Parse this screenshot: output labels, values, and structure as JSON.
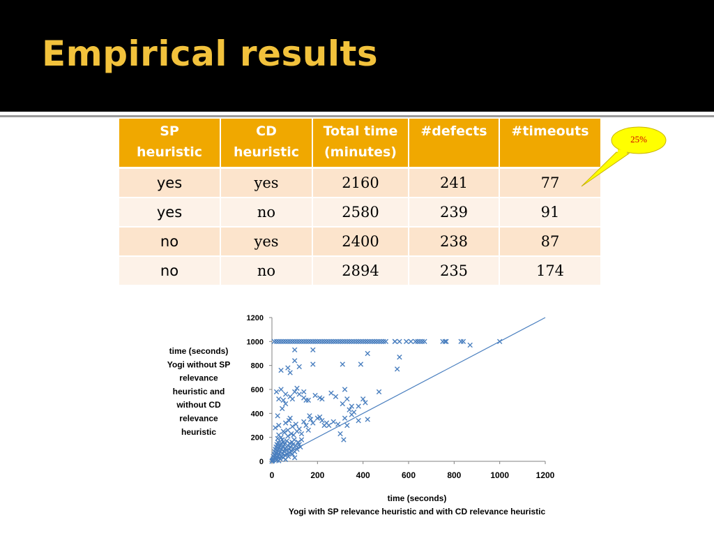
{
  "slide": {
    "title": "Empirical results"
  },
  "table": {
    "headers": [
      [
        "SP",
        "heuristic"
      ],
      [
        "CD",
        "heuristic"
      ],
      [
        "Total time",
        "(minutes)"
      ],
      [
        "#defects"
      ],
      [
        "#timeouts"
      ]
    ],
    "rows": [
      [
        "yes",
        "yes",
        "2160",
        "241",
        "77"
      ],
      [
        "yes",
        "no",
        "2580",
        "239",
        "91"
      ],
      [
        "no",
        "yes",
        "2400",
        "238",
        "87"
      ],
      [
        "no",
        "no",
        "2894",
        "235",
        "174"
      ]
    ]
  },
  "callout": {
    "text": "25%",
    "fill": "#ffff00",
    "stroke": "#c9b400",
    "text_color": "#d00000"
  },
  "colors": {
    "header_bg": "#f0a800",
    "row_odd": "#fce4cc",
    "row_even": "#fdf2e8",
    "title": "#f2c23c",
    "series": "#4a7fbf"
  },
  "chart_data": {
    "type": "scatter",
    "xlabel": [
      "time (seconds)",
      "Yogi with SP relevance heuristic and with CD relevance heuristic"
    ],
    "ylabel": [
      "time (seconds)",
      "Yogi  without SP",
      "relevance",
      "heuristic and",
      "without CD",
      "relevance",
      "heuristic"
    ],
    "x_ticks": [
      "0",
      "200",
      "400",
      "600",
      "800",
      "1000",
      "1200"
    ],
    "y_ticks": [
      "0",
      "200",
      "400",
      "600",
      "800",
      "1000",
      "1200"
    ],
    "xlim": [
      0,
      1200
    ],
    "ylim": [
      0,
      1200
    ],
    "marker": "x",
    "grid": false,
    "reference_line": {
      "x": [
        0,
        1200
      ],
      "y": [
        0,
        1200
      ]
    },
    "points": [
      [
        0,
        0
      ],
      [
        2,
        5
      ],
      [
        4,
        10
      ],
      [
        5,
        20
      ],
      [
        6,
        40
      ],
      [
        8,
        15
      ],
      [
        10,
        60
      ],
      [
        10,
        30
      ],
      [
        12,
        80
      ],
      [
        14,
        25
      ],
      [
        15,
        100
      ],
      [
        16,
        50
      ],
      [
        18,
        120
      ],
      [
        20,
        10
      ],
      [
        20,
        70
      ],
      [
        22,
        140
      ],
      [
        24,
        35
      ],
      [
        25,
        90
      ],
      [
        26,
        160
      ],
      [
        28,
        45
      ],
      [
        30,
        5
      ],
      [
        30,
        110
      ],
      [
        32,
        60
      ],
      [
        35,
        130
      ],
      [
        36,
        20
      ],
      [
        38,
        80
      ],
      [
        40,
        150
      ],
      [
        40,
        40
      ],
      [
        42,
        100
      ],
      [
        45,
        65
      ],
      [
        48,
        120
      ],
      [
        50,
        30
      ],
      [
        50,
        160
      ],
      [
        52,
        85
      ],
      [
        55,
        140
      ],
      [
        58,
        50
      ],
      [
        60,
        110
      ],
      [
        62,
        90
      ],
      [
        65,
        170
      ],
      [
        68,
        60
      ],
      [
        70,
        130
      ],
      [
        72,
        40
      ],
      [
        75,
        100
      ],
      [
        78,
        150
      ],
      [
        80,
        70
      ],
      [
        82,
        120
      ],
      [
        85,
        90
      ],
      [
        88,
        160
      ],
      [
        90,
        60
      ],
      [
        92,
        140
      ],
      [
        95,
        110
      ],
      [
        98,
        180
      ],
      [
        100,
        80
      ],
      [
        105,
        130
      ],
      [
        110,
        100
      ],
      [
        115,
        160
      ],
      [
        120,
        140
      ],
      [
        125,
        120
      ],
      [
        130,
        180
      ],
      [
        100,
        30
      ],
      [
        60,
        15
      ],
      [
        40,
        200
      ],
      [
        30,
        220
      ],
      [
        55,
        240
      ],
      [
        70,
        210
      ],
      [
        85,
        230
      ],
      [
        45,
        180
      ],
      [
        25,
        190
      ],
      [
        15,
        280
      ],
      [
        25,
        380
      ],
      [
        30,
        300
      ],
      [
        45,
        440
      ],
      [
        50,
        250
      ],
      [
        60,
        320
      ],
      [
        70,
        260
      ],
      [
        75,
        340
      ],
      [
        80,
        360
      ],
      [
        90,
        290
      ],
      [
        95,
        220
      ],
      [
        105,
        310
      ],
      [
        110,
        250
      ],
      [
        120,
        270
      ],
      [
        130,
        230
      ],
      [
        140,
        330
      ],
      [
        150,
        300
      ],
      [
        160,
        260
      ],
      [
        165,
        380
      ],
      [
        170,
        350
      ],
      [
        180,
        320
      ],
      [
        200,
        360
      ],
      [
        210,
        370
      ],
      [
        220,
        340
      ],
      [
        230,
        300
      ],
      [
        240,
        320
      ],
      [
        250,
        300
      ],
      [
        270,
        330
      ],
      [
        290,
        310
      ],
      [
        300,
        230
      ],
      [
        310,
        480
      ],
      [
        315,
        180
      ],
      [
        320,
        360
      ],
      [
        330,
        300
      ],
      [
        340,
        430
      ],
      [
        350,
        390
      ],
      [
        360,
        410
      ],
      [
        380,
        340
      ],
      [
        420,
        350
      ],
      [
        50,
        510
      ],
      [
        60,
        480
      ],
      [
        30,
        520
      ],
      [
        20,
        580
      ],
      [
        40,
        600
      ],
      [
        60,
        560
      ],
      [
        80,
        540
      ],
      [
        90,
        520
      ],
      [
        100,
        580
      ],
      [
        110,
        610
      ],
      [
        120,
        560
      ],
      [
        140,
        530
      ],
      [
        150,
        510
      ],
      [
        140,
        580
      ],
      [
        160,
        510
      ],
      [
        190,
        550
      ],
      [
        210,
        530
      ],
      [
        220,
        520
      ],
      [
        260,
        570
      ],
      [
        280,
        540
      ],
      [
        320,
        600
      ],
      [
        330,
        520
      ],
      [
        350,
        460
      ],
      [
        380,
        460
      ],
      [
        400,
        520
      ],
      [
        410,
        490
      ],
      [
        470,
        580
      ],
      [
        550,
        770
      ],
      [
        560,
        870
      ],
      [
        310,
        810
      ],
      [
        180,
        810
      ],
      [
        80,
        740
      ],
      [
        100,
        840
      ],
      [
        120,
        790
      ],
      [
        70,
        780
      ],
      [
        40,
        760
      ],
      [
        100,
        930
      ],
      [
        180,
        930
      ],
      [
        390,
        810
      ],
      [
        420,
        900
      ],
      [
        870,
        970
      ],
      [
        10,
        1000
      ],
      [
        20,
        1000
      ],
      [
        30,
        1000
      ],
      [
        40,
        1000
      ],
      [
        50,
        1000
      ],
      [
        60,
        1000
      ],
      [
        70,
        1000
      ],
      [
        80,
        1000
      ],
      [
        90,
        1000
      ],
      [
        100,
        1000
      ],
      [
        110,
        1000
      ],
      [
        120,
        1000
      ],
      [
        130,
        1000
      ],
      [
        140,
        1000
      ],
      [
        150,
        1000
      ],
      [
        160,
        1000
      ],
      [
        170,
        1000
      ],
      [
        180,
        1000
      ],
      [
        190,
        1000
      ],
      [
        200,
        1000
      ],
      [
        210,
        1000
      ],
      [
        220,
        1000
      ],
      [
        230,
        1000
      ],
      [
        240,
        1000
      ],
      [
        250,
        1000
      ],
      [
        260,
        1000
      ],
      [
        270,
        1000
      ],
      [
        280,
        1000
      ],
      [
        290,
        1000
      ],
      [
        300,
        1000
      ],
      [
        310,
        1000
      ],
      [
        320,
        1000
      ],
      [
        330,
        1000
      ],
      [
        340,
        1000
      ],
      [
        350,
        1000
      ],
      [
        360,
        1000
      ],
      [
        370,
        1000
      ],
      [
        380,
        1000
      ],
      [
        390,
        1000
      ],
      [
        400,
        1000
      ],
      [
        410,
        1000
      ],
      [
        420,
        1000
      ],
      [
        430,
        1000
      ],
      [
        440,
        1000
      ],
      [
        450,
        1000
      ],
      [
        460,
        1000
      ],
      [
        470,
        1000
      ],
      [
        480,
        1000
      ],
      [
        490,
        1000
      ],
      [
        500,
        1000
      ],
      [
        540,
        1000
      ],
      [
        560,
        1000
      ],
      [
        610,
        1000
      ],
      [
        640,
        1000
      ],
      [
        660,
        1000
      ],
      [
        750,
        1000
      ],
      [
        760,
        1000
      ],
      [
        830,
        1000
      ],
      [
        840,
        1000
      ],
      [
        1000,
        1000
      ],
      [
        540,
        1000
      ],
      [
        590,
        1000
      ],
      [
        630,
        1000
      ],
      [
        650,
        1000
      ],
      [
        670,
        1000
      ],
      [
        765,
        1000
      ]
    ]
  }
}
